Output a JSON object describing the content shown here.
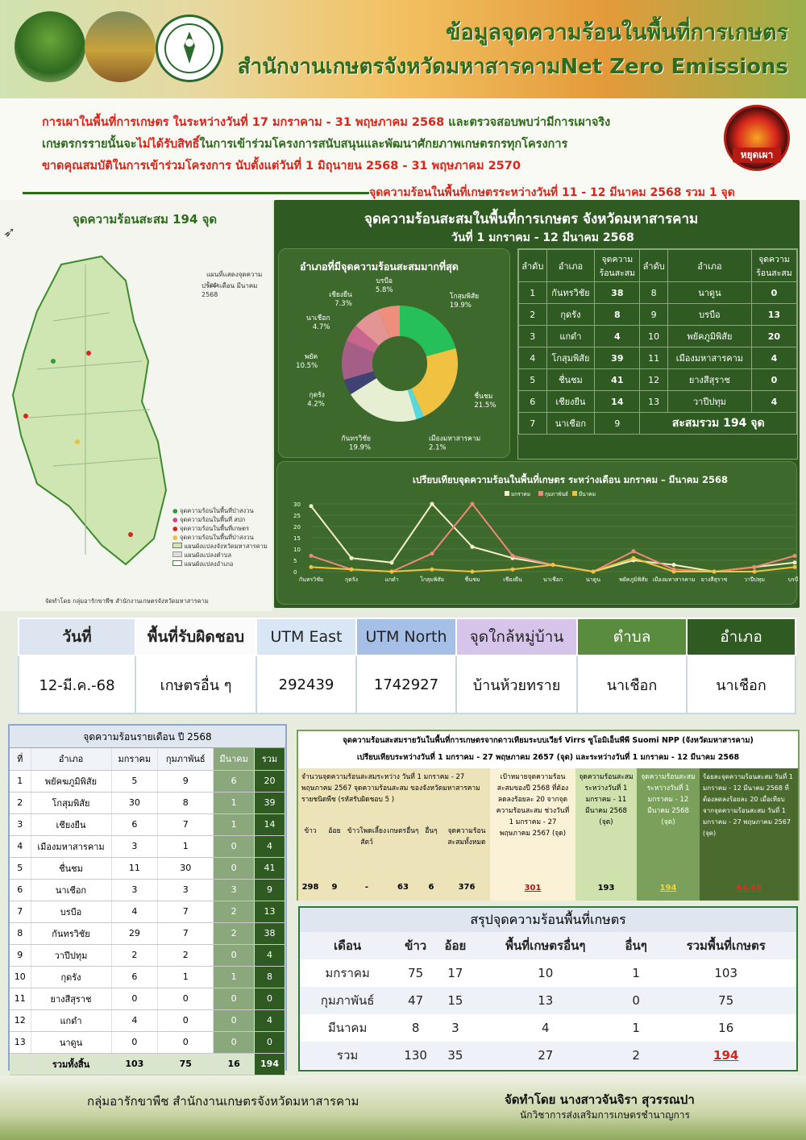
{
  "header": {
    "title_line1": "ข้อมูลจุดความร้อนในพื้นที่การเกษตร",
    "title_line2": "สำนักงานเกษตรจังหวัดมหาสารคามNet Zero Emissions"
  },
  "notice": {
    "line1_red": "การเผาในพื้นที่การเกษตร ในระหว่างวันที่ 17 มกราคาม - 31 พฤษภาคม 2568",
    "line1_green": "และตรวจสอบพบว่ามีการเผาจริง",
    "line2_a": "เกษตรกรรายนั้นจะ",
    "line2_red": "ไม่ได้รับสิทธิ์",
    "line2_b": "ในการเข้าร่วมโครงการสนับสนุนและพัฒนาศักยภาพเกษตรกรทุกโครงการ",
    "line3": "ขาดคุณสมบัติในการเข้าร่วมโครงการ นับตั้งแต่วันที่ 1 มิถุนายน 2568 - 31 พฤษภาคม 2570",
    "stop_burn": "หยุดเผา",
    "hotline": "จุดความร้อนในพื้นที่เกษตรระหว่างวันที่ 11 - 12 มีนาคม 2568 รวม  1  จุด"
  },
  "map": {
    "title": "จุดความร้อนสะสม 194 จุด",
    "caption1": "แผนที่แสดงจุดความร้อน",
    "caption2": "ประจำเดือน มีนาคม 2568",
    "legend": [
      "จุดความร้อนในพื้นที่ป่าสงวน",
      "จุดความร้อนในพื้นที่ สปก",
      "จุดความร้อนในพื้นที่เกษตร",
      "จุดความร้อนในพื้นที่ป่าสงวน",
      "แผนผังแปลงจังหวัดมหาสารคาม",
      "แผนผังแปลงตำบล",
      "แผนผังแปลงอำเภอ"
    ],
    "credit": "จัดทำโดย กลุ่มอารักขาพืช สำนักงานเกษตรจังหวัดมหาสารคาม"
  },
  "panel": {
    "title": "จุดความร้อนสะสมในพื้นที่การเกษตร จังหวัดมหาสารคาม",
    "date": "วันที่  1  มกราคม - 12  มีนาคม 2568"
  },
  "pie": {
    "title": "อำเภอที่มีจุดความร้อนสะสมมากที่สุด",
    "slices": [
      {
        "name": "โกสุมพิสัย",
        "pct": "19.9%",
        "value": 19.9,
        "color": "#25c05a"
      },
      {
        "name": "ชื่นชม",
        "pct": "21.5%",
        "value": 21.5,
        "color": "#f1c242"
      },
      {
        "name": "เมืองมหาสารคาม",
        "pct": "2.1%",
        "value": 2.1,
        "color": "#55d8e0"
      },
      {
        "name": "กันทรวิชัย",
        "pct": "19.9%",
        "value": 19.9,
        "color": "#e6efd2"
      },
      {
        "name": "กุดรัง",
        "pct": "4.2%",
        "value": 4.2,
        "color": "#3e4275"
      },
      {
        "name": "พยัค",
        "pct": "10.5%",
        "value": 10.5,
        "color": "#a55f86"
      },
      {
        "name": "นาเชือก",
        "pct": "4.7%",
        "value": 4.7,
        "color": "#c86690"
      },
      {
        "name": "เชียงยืน",
        "pct": "7.3%",
        "value": 7.3,
        "color": "#e39494"
      },
      {
        "name": "บรบือ",
        "pct": "5.8%",
        "value": 5.8,
        "color": "#ee8f7e"
      }
    ]
  },
  "rank": {
    "headers": [
      "ลำดับ",
      "อำเภอ",
      "จุดความ\nร้อนสะสม",
      "ลำดับ",
      "อำเภอ",
      "จุดความ\nร้อนสะสม"
    ],
    "rows": [
      [
        "1",
        "กันทรวิชัย",
        "38",
        "8",
        "นาดูน",
        "0"
      ],
      [
        "2",
        "กุดรัง",
        "8",
        "9",
        "บรบือ",
        "13"
      ],
      [
        "3",
        "แกดำ",
        "4",
        "10",
        "พยัคภูมิพิสัย",
        "20"
      ],
      [
        "4",
        "โกสุมพิสัย",
        "39",
        "11",
        "เมืองมหาสารคาม",
        "4"
      ],
      [
        "5",
        "ชื่นชม",
        "41",
        "12",
        "ยางสีสุราช",
        "0"
      ],
      [
        "6",
        "เชียงยืน",
        "14",
        "13",
        "วาปีปทุม",
        "4"
      ],
      [
        "7",
        "นาเชือก",
        "9"
      ]
    ],
    "total": "สะสมรวม 194 จุด"
  },
  "line_chart": {
    "title": "เปรียบเทียบจุดความร้อนในพื้นที่เกษตร ระหว่างเดือน มกราคม – มีนาคม 2568"
  },
  "chart_data": {
    "type": "line",
    "categories": [
      "กันทรวิชัย",
      "กุดรัง",
      "แกดำ",
      "โกสุมพิสัย",
      "ชื่นชม",
      "เชียงยืน",
      "นาเชือก",
      "นาดูน",
      "พยัคภูมิพิสัย",
      "เมืองมหาสารคาม",
      "ยางสีสุราช",
      "วาปีปทุม",
      "บรบือ"
    ],
    "series": [
      {
        "name": "มกราคม",
        "values": [
          29,
          6,
          4,
          30,
          11,
          6,
          3,
          0,
          5,
          3,
          0,
          2,
          4
        ],
        "color": "#f4f0cc"
      },
      {
        "name": "กุมภาพันธ์",
        "values": [
          7,
          1,
          0,
          8,
          30,
          7,
          3,
          0,
          9,
          1,
          0,
          2,
          7
        ],
        "color": "#f08878"
      },
      {
        "name": "มีนาคม",
        "values": [
          2,
          1,
          0,
          1,
          0,
          1,
          3,
          0,
          6,
          0,
          0,
          0,
          2
        ],
        "color": "#f1c242"
      }
    ],
    "ylim": [
      0,
      30
    ],
    "yticks": [
      "0",
      "5",
      "10",
      "15",
      "20",
      "25",
      "30"
    ]
  },
  "utm": {
    "headers": [
      "วันที่",
      "พื้นที่รับผิดชอบ",
      "UTM East",
      "UTM North",
      "จุดใกล้หมู่บ้าน",
      "ตำบล",
      "อำเภอ"
    ],
    "values": [
      "12-มี.ค.-68",
      "เกษตรอื่น ๆ",
      "292439",
      "1742927",
      "บ้านห้วยทราย",
      "นาเชือก",
      "นาเชือก"
    ]
  },
  "monthly": {
    "title": "จุดความร้อนรายเดือน ปี 2568",
    "headers": [
      "ที่",
      "อำเภอ",
      "มกราคม",
      "กุมภาพันธ์",
      "มีนาคม",
      "รวม"
    ],
    "rows": [
      [
        "1",
        "พยัคฆภูมิพิสัย",
        "5",
        "9",
        "6",
        "20"
      ],
      [
        "2",
        "โกสุมพิสัย",
        "30",
        "8",
        "1",
        "39"
      ],
      [
        "3",
        "เชียงยืน",
        "6",
        "7",
        "1",
        "14"
      ],
      [
        "4",
        "เมืองมหาสารคาม",
        "3",
        "1",
        "0",
        "4"
      ],
      [
        "5",
        "ชื่นชม",
        "11",
        "30",
        "0",
        "41"
      ],
      [
        "6",
        "นาเชือก",
        "3",
        "3",
        "3",
        "9"
      ],
      [
        "7",
        "บรบือ",
        "4",
        "7",
        "2",
        "13"
      ],
      [
        "8",
        "กันทรวิชัย",
        "29",
        "7",
        "2",
        "38"
      ],
      [
        "9",
        "วาปีปทุม",
        "2",
        "2",
        "0",
        "4"
      ],
      [
        "10",
        "กุดรัง",
        "6",
        "1",
        "1",
        "8"
      ],
      [
        "11",
        "ยางสีสุราช",
        "0",
        "0",
        "0",
        "0"
      ],
      [
        "12",
        "แกดำ",
        "4",
        "0",
        "0",
        "4"
      ],
      [
        "13",
        "นาดูน",
        "0",
        "0",
        "0",
        "0"
      ]
    ],
    "total": [
      "",
      "รวมทั้งสิ้น",
      "103",
      "75",
      "16",
      "194"
    ]
  },
  "compare": {
    "title1": "จุดความร้อนสะสมรายวันในพื้นที่การเกษตรจากดาวเทียมระบบเวียร์ Virrs ซูโอมิเอ็นพีพี Suomi NPP (จังหวัดมหาสารคาม)",
    "title2": "เปรียบเทียบระหว่างวันที่ 1 มกราคม - 27 พฤษภาคม 2657 (จุด) และระหว่างวันที่ 1 มกราคม - 12 มีนาคม 2568",
    "col1_head": "จำนวนจุดความร้อนสะสมระหว่าง วันที่ 1 มกราคม - 27 พฤษภาคม 2567 จุดความร้อนสะสม ของจังหวัดมหาสารคาม รายชนิดพืช (รหัสรับผิดชอบ 5 )",
    "sub_heads": [
      "ข้าว",
      "อ้อย",
      "ข้าวโพดเลี้ยงสัตว์",
      "เกษตรอื่นๆ",
      "อื่นๆ",
      "จุดความร้อนสะสมทั้งหมด"
    ],
    "sub_values": [
      "298",
      "9",
      "-",
      "63",
      "6",
      "376"
    ],
    "col2_head": "เป้าหมายจุดความร้อนสะสมของปี 2568 ที่ต้องลดลงร้อยละ 20 จากจุดความร้อนสะสม ช่วงวันที่ 1 มกราคม - 27 พฤษภาคม 2567 (จุด)",
    "col2_value": "301",
    "col3_head": "จุดความร้อนสะสม ระหว่างวันที่ 1 มกราคม - 11 มีนาคม 2568 (จุด)",
    "col3_value": "193",
    "col4_head": "จุดความร้อนสะสมระหว่างวันที่ 1 มกราคม - 12 มีนาคม 2568 (จุด)",
    "col4_value": "194",
    "col5_head": "ร้อยละจุดความร้อนสะสม วันที่ 1 มกราคม - 12 มีนาคม 2568 ที่ต้องลดลงร้อยละ 20 เมื่อเทียบจากจุดความร้อนสะสม วันที่ 1 มกราคม - 27 พฤษภาคม 2567 (จุด)",
    "col5_value": "64.45"
  },
  "summary": {
    "title": "สรุปจุดความร้อนพื้นที่เกษตร",
    "headers": [
      "เดือน",
      "ข้าว",
      "อ้อย",
      "พื้นที่เกษตรอื่นๆ",
      "อื่นๆ",
      "รวมพื้นที่เกษตร"
    ],
    "rows": [
      [
        "มกราคม",
        "75",
        "17",
        "10",
        "1",
        "103"
      ],
      [
        "กุมภาพันธ์",
        "47",
        "15",
        "13",
        "0",
        "75"
      ],
      [
        "มีนาคม",
        "8",
        "3",
        "4",
        "1",
        "16"
      ],
      [
        "รวม",
        "130",
        "35",
        "27",
        "2",
        "194"
      ]
    ]
  },
  "footer": {
    "left": "กลุ่มอารักขาพืช สำนักงานเกษตรจังหวัดมหาสารคาม",
    "right1": "จัดทำโดย นางสาวจันจิรา สุวรรณปา",
    "right2": "นักวิชาการส่งเสริมการเกษตรชำนาญการ"
  }
}
